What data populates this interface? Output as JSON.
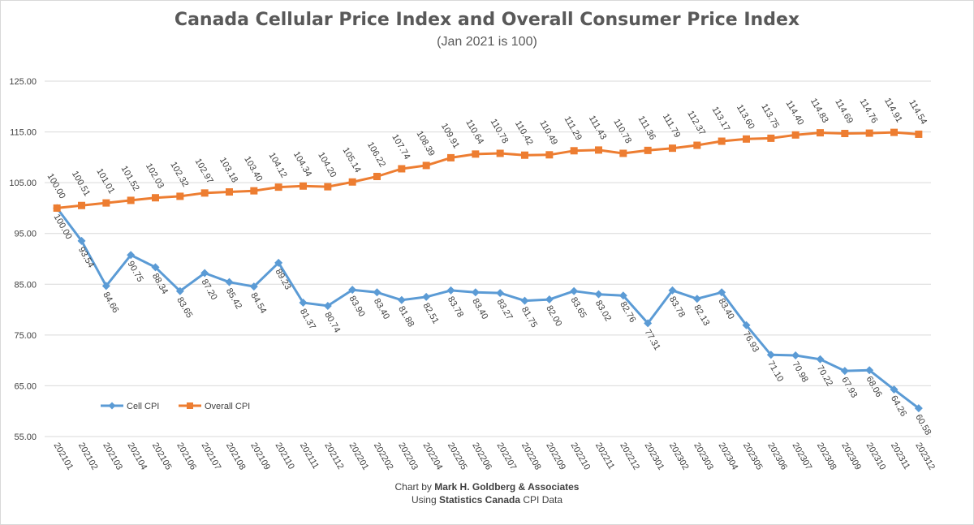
{
  "title": "Canada Cellular Price Index and Overall Consumer Price Index",
  "subtitle": "(Jan 2021 is 100)",
  "footer": {
    "line1_prefix": "Chart by ",
    "line1_bold": "Mark H. Goldberg & Associates",
    "line2_prefix": "Using ",
    "line2_bold": "Statistics Canada",
    "line2_suffix": " CPI Data"
  },
  "chart_data": {
    "type": "line",
    "categories": [
      "202101",
      "202102",
      "202103",
      "202104",
      "202105",
      "202106",
      "202107",
      "202108",
      "202109",
      "202110",
      "202111",
      "202112",
      "202201",
      "202202",
      "202203",
      "202204",
      "202205",
      "202206",
      "202207",
      "202208",
      "202209",
      "202210",
      "202211",
      "202212",
      "202301",
      "202302",
      "202303",
      "202304",
      "202305",
      "202306",
      "202307",
      "202308",
      "202309",
      "202310",
      "202311",
      "202312"
    ],
    "ylim": [
      55,
      125
    ],
    "yticks": [
      "55.00",
      "65.00",
      "75.00",
      "85.00",
      "95.00",
      "105.00",
      "115.00",
      "125.00"
    ],
    "grid": true,
    "legend_position": "bottom-left",
    "series": [
      {
        "name": "Cell CPI",
        "color": "#5b9bd5",
        "marker": "diamond",
        "label_position": "below",
        "values": [
          100.0,
          93.54,
          84.66,
          90.75,
          88.34,
          83.65,
          87.2,
          85.42,
          84.54,
          89.23,
          81.37,
          80.74,
          83.9,
          83.4,
          81.88,
          82.51,
          83.78,
          83.4,
          83.27,
          81.75,
          82.0,
          83.65,
          83.02,
          82.76,
          77.31,
          83.78,
          82.13,
          83.4,
          76.93,
          71.1,
          70.98,
          70.22,
          67.93,
          68.06,
          64.26,
          60.58
        ],
        "labels": [
          "100.00",
          "93.54",
          "84.66",
          "90.75",
          "88.34",
          "83.65",
          "87.20",
          "85.42",
          "84.54",
          "89.23",
          "81.37",
          "80.74",
          "83.90",
          "83.40",
          "81.88",
          "82.51",
          "83.78",
          "83.40",
          "83.27",
          "81.75",
          "82.00",
          "83.65",
          "83.02",
          "82.76",
          "77.31",
          "83.78",
          "82.13",
          "83.40",
          "76.93",
          "71.10",
          "70.98",
          "70.22",
          "67.93",
          "68.06",
          "64.26",
          "60.58"
        ]
      },
      {
        "name": "Overall CPI",
        "color": "#ed7d31",
        "marker": "square",
        "label_position": "above",
        "values": [
          100.0,
          100.51,
          101.01,
          101.52,
          102.03,
          102.32,
          102.97,
          103.18,
          103.4,
          104.12,
          104.34,
          104.2,
          105.14,
          106.22,
          107.74,
          108.39,
          109.91,
          110.64,
          110.78,
          110.42,
          110.49,
          111.29,
          111.43,
          110.78,
          111.36,
          111.79,
          112.37,
          113.17,
          113.6,
          113.75,
          114.4,
          114.83,
          114.69,
          114.76,
          114.91,
          114.54
        ],
        "labels": [
          "100.00",
          "100.51",
          "101.01",
          "101.52",
          "102.03",
          "102.32",
          "102.97",
          "103.18",
          "103.40",
          "104.12",
          "104.34",
          "104.20",
          "105.14",
          "106.22",
          "107.74",
          "108.39",
          "109.91",
          "110.64",
          "110.78",
          "110.42",
          "110.49",
          "111.29",
          "111.43",
          "110.78",
          "111.36",
          "111.79",
          "112.37",
          "113.17",
          "113.60",
          "113.75",
          "114.40",
          "114.83",
          "114.69",
          "114.76",
          "114.91",
          "114.54"
        ]
      }
    ]
  }
}
